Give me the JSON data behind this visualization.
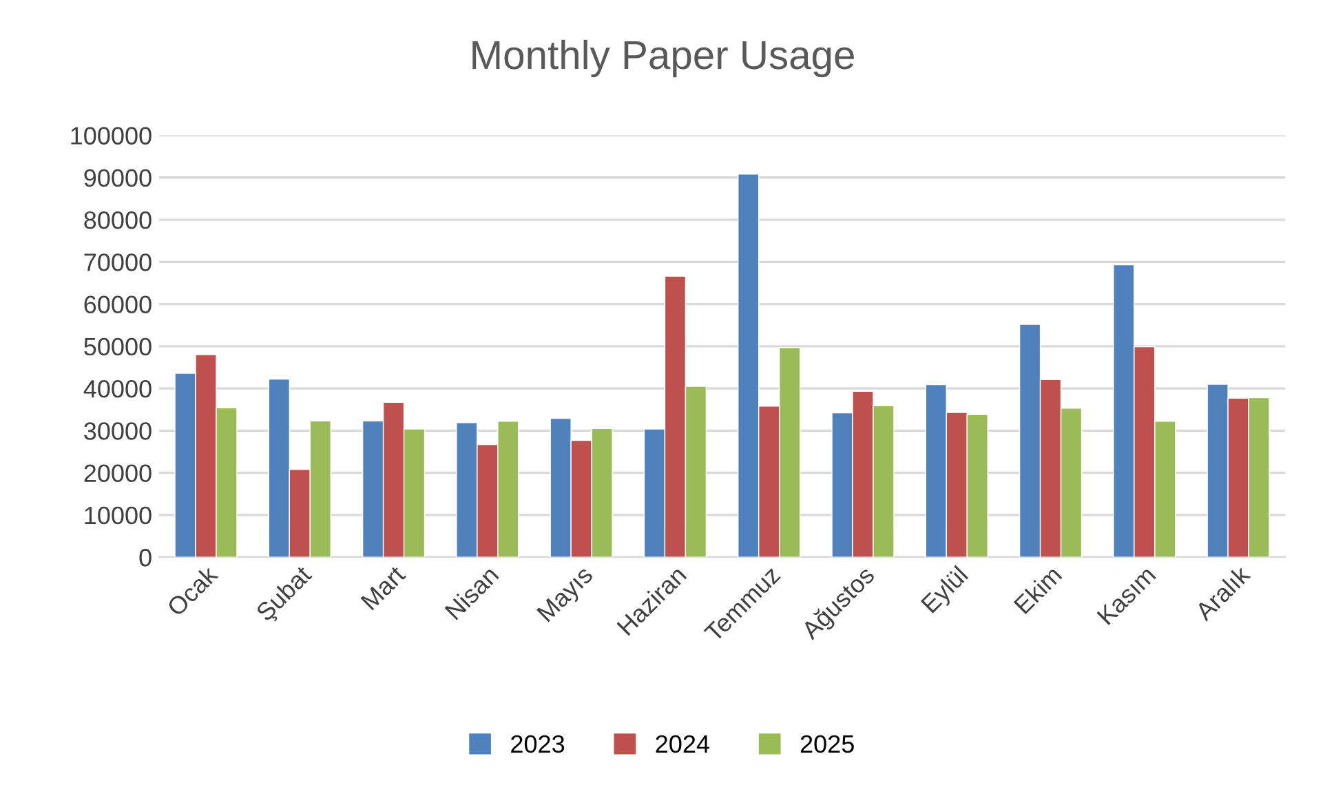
{
  "chart_data": {
    "type": "bar",
    "title": "Monthly Paper Usage",
    "categories": [
      "Ocak",
      "Şubat",
      "Mart",
      "Nisan",
      "Mayıs",
      "Haziran",
      "Temmuz",
      "Ağustos",
      "Eylül",
      "Ekim",
      "Kasım",
      "Aralık"
    ],
    "series": [
      {
        "name": "2023",
        "color": "#4f81bd",
        "values": [
          43600,
          42200,
          32300,
          31900,
          32900,
          30400,
          90800,
          34200,
          40900,
          55200,
          69300,
          41000
        ]
      },
      {
        "name": "2024",
        "color": "#c0504d",
        "values": [
          48000,
          20800,
          36700,
          26700,
          27700,
          66600,
          35800,
          39300,
          34300,
          42100,
          49900,
          37700
        ]
      },
      {
        "name": "2025",
        "color": "#9bbb59",
        "values": [
          35400,
          32300,
          30400,
          32200,
          30500,
          40500,
          49700,
          35900,
          33800,
          35300,
          32200,
          37800
        ]
      }
    ],
    "ylim": [
      0,
      100000
    ],
    "yticks": [
      0,
      10000,
      20000,
      30000,
      40000,
      50000,
      60000,
      70000,
      80000,
      90000,
      100000
    ],
    "grid": "y",
    "legend": "bottom"
  }
}
